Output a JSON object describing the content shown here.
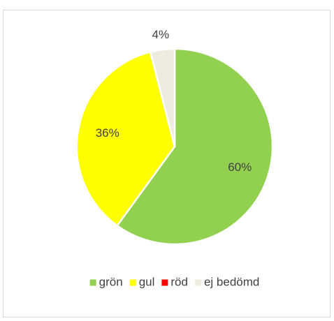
{
  "chart_data": {
    "type": "pie",
    "categories": [
      "grön",
      "gul",
      "röd",
      "ej bedömd"
    ],
    "values": [
      60,
      36,
      0,
      4
    ],
    "value_labels": [
      "60%",
      "36%",
      null,
      "4%"
    ],
    "colors": [
      "#92d050",
      "#ffff00",
      "#ff0000",
      "#eeece1"
    ],
    "legend": "bottom"
  }
}
